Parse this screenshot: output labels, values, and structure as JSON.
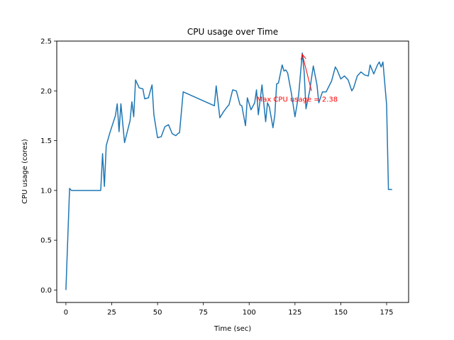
{
  "chart_data": {
    "type": "line",
    "title": "CPU usage over Time",
    "xlabel": "Time (sec)",
    "ylabel": "CPU usage (cores)",
    "xlim": [
      -5,
      187
    ],
    "ylim": [
      -0.125,
      2.5
    ],
    "xticks": [
      0,
      25,
      50,
      75,
      100,
      125,
      150,
      175
    ],
    "yticks": [
      0.0,
      0.5,
      1.0,
      1.5,
      2.0,
      2.5
    ],
    "ytick_labels": [
      "0.0",
      "0.5",
      "1.0",
      "1.5",
      "2.0",
      "2.5"
    ],
    "grid": false,
    "line_color": "#1f77b4",
    "annotation": {
      "text": "Max CPU usage = 2.38",
      "x": 129,
      "y": 2.38,
      "text_x": 104,
      "text_y": 1.92,
      "color": "#ff0000"
    },
    "series": [
      {
        "x": [
          0,
          2,
          3,
          5,
          10,
          15,
          19,
          20,
          21,
          22,
          24,
          27,
          28,
          29,
          30,
          32,
          35,
          36,
          37,
          38,
          40,
          42,
          43,
          45,
          47,
          48,
          50,
          52,
          54,
          56,
          58,
          60,
          61,
          62,
          64,
          81,
          82,
          84,
          86,
          88,
          89,
          91,
          93,
          95,
          96,
          98,
          99,
          101,
          103,
          104,
          105,
          107,
          108,
          109,
          110,
          111,
          113,
          114,
          115,
          116,
          118,
          119,
          120,
          121,
          123,
          125,
          127,
          129,
          130,
          131,
          133,
          135,
          137,
          138,
          140,
          142,
          145,
          147,
          148,
          150,
          152,
          154,
          156,
          157,
          159,
          161,
          163,
          165,
          166,
          168,
          170,
          171,
          172,
          173,
          175,
          176,
          178
        ],
        "y": [
          0.0,
          1.02,
          1.0,
          1.0,
          1.0,
          1.0,
          1.0,
          1.37,
          1.04,
          1.45,
          1.58,
          1.75,
          1.87,
          1.59,
          1.87,
          1.48,
          1.7,
          1.89,
          1.74,
          2.11,
          2.03,
          2.02,
          1.92,
          1.93,
          2.06,
          1.76,
          1.53,
          1.54,
          1.64,
          1.66,
          1.57,
          1.55,
          1.57,
          1.58,
          1.99,
          1.85,
          2.05,
          1.73,
          1.79,
          1.84,
          1.86,
          2.01,
          2.0,
          1.86,
          1.85,
          1.65,
          1.93,
          1.81,
          1.88,
          2.01,
          1.76,
          2.06,
          1.87,
          1.69,
          1.88,
          1.84,
          1.63,
          1.76,
          2.07,
          2.08,
          2.26,
          2.2,
          2.21,
          2.18,
          1.98,
          1.74,
          1.96,
          2.38,
          2.19,
          1.82,
          2.0,
          2.25,
          2.06,
          1.88,
          1.99,
          1.99,
          2.1,
          2.24,
          2.21,
          2.12,
          2.15,
          2.11,
          2.0,
          2.03,
          2.15,
          2.19,
          2.16,
          2.15,
          2.26,
          2.17,
          2.26,
          2.29,
          2.24,
          2.29,
          1.86,
          1.01,
          1.01
        ]
      }
    ]
  }
}
